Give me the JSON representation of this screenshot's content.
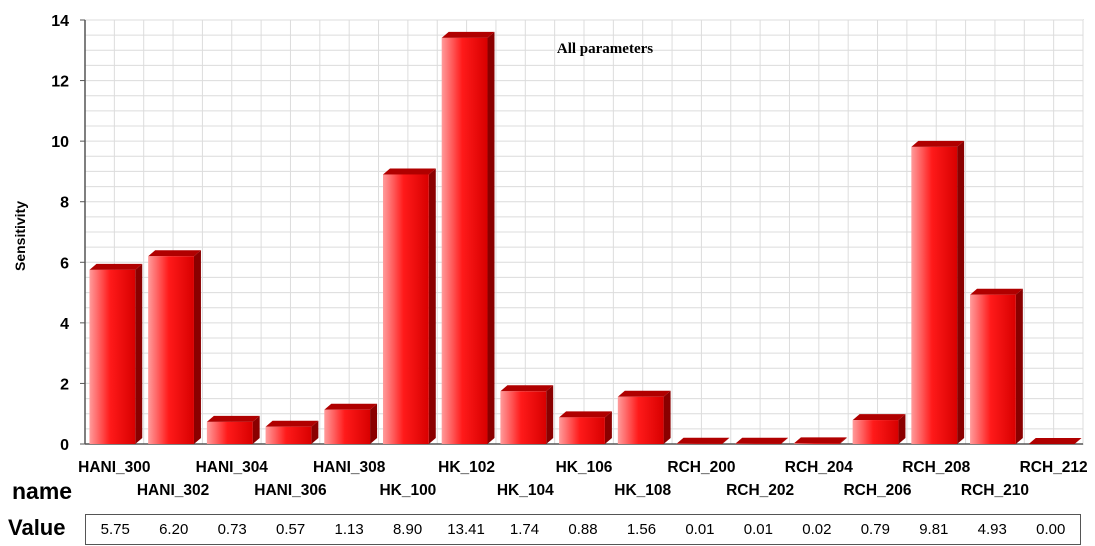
{
  "chart_data": {
    "type": "bar",
    "title": "All parameters",
    "xlabel": "",
    "ylabel": "Sensitivity",
    "ylim": [
      0,
      14
    ],
    "yticks": [
      0,
      2,
      4,
      6,
      8,
      10,
      12,
      14
    ],
    "grid": true,
    "legend": "none",
    "bar_color": "#e10000",
    "categories": [
      "HANI_300",
      "HANI_302",
      "HANI_304",
      "HANI_306",
      "HANI_308",
      "HK_100",
      "HK_102",
      "HK_104",
      "HK_106",
      "HK_108",
      "RCH_200",
      "RCH_202",
      "RCH_204",
      "RCH_206",
      "RCH_208",
      "RCH_210",
      "RCH_212"
    ],
    "values": [
      5.75,
      6.2,
      0.73,
      0.57,
      1.13,
      8.9,
      13.41,
      1.74,
      0.88,
      1.56,
      0.01,
      0.01,
      0.02,
      0.79,
      9.81,
      4.93,
      0.0
    ],
    "value_labels": [
      "5.75",
      "6.20",
      "0.73",
      "0.57",
      "1.13",
      "8.90",
      "13.41",
      "1.74",
      "0.88",
      "1.56",
      "0.01",
      "0.01",
      "0.02",
      "0.79",
      "9.81",
      "4.93",
      "0.00"
    ]
  },
  "table": {
    "name_label": "name",
    "value_label": "Value"
  }
}
